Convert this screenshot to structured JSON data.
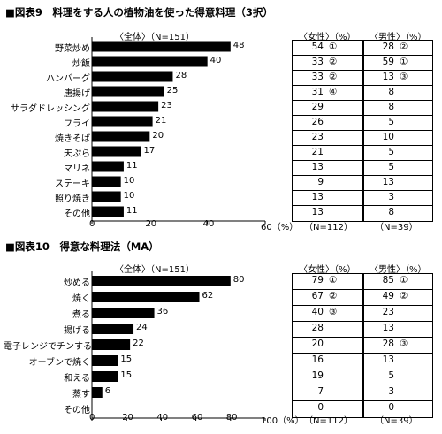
{
  "chart_data": [
    {
      "type": "bar",
      "title": "■図表9　料理をする人の植物油を使った得意料理（3択）",
      "series_header": "〈全体〉（N=151）",
      "categories": [
        "野菜炒め",
        "炒飯",
        "ハンバーグ",
        "唐揚げ",
        "サラダドレッシング",
        "フライ",
        "焼きそば",
        "天ぷら",
        "マリネ",
        "ステーキ",
        "照り焼き",
        "その他"
      ],
      "values": [
        48,
        40,
        28,
        25,
        23,
        21,
        20,
        17,
        11,
        10,
        10,
        11
      ],
      "xlim": [
        0,
        60
      ],
      "ticks": [
        "0",
        "20",
        "40",
        "60（%）"
      ],
      "tables": [
        {
          "header": "〈女性〉（%）",
          "values": [
            "54",
            "33",
            "33",
            "31",
            "29",
            "26",
            "23",
            "21",
            "13",
            "9",
            "13",
            "13"
          ],
          "ranks": [
            "①",
            "②",
            "②",
            "④",
            "",
            "",
            "",
            "",
            "",
            "",
            "",
            ""
          ],
          "footer": "（N=112）"
        },
        {
          "header": "〈男性〉（%）",
          "values": [
            "28",
            "59",
            "13",
            "8",
            "8",
            "5",
            "10",
            "5",
            "5",
            "13",
            "3",
            "8"
          ],
          "ranks": [
            "②",
            "①",
            "③",
            "",
            "",
            "",
            "",
            "",
            "",
            "",
            "",
            ""
          ],
          "footer": "（N=39）"
        }
      ]
    },
    {
      "type": "bar",
      "title": "■図表10　得意な料理法（MA）",
      "series_header": "〈全体〉（N=151）",
      "categories": [
        "炒める",
        "焼く",
        "煮る",
        "揚げる",
        "電子レンジでチンする",
        "オーブンで焼く",
        "和える",
        "蒸す",
        "その他"
      ],
      "values": [
        80,
        62,
        36,
        24,
        22,
        15,
        15,
        6,
        0
      ],
      "value_labels": [
        "80",
        "62",
        "36",
        "24",
        "22",
        "15",
        "15",
        "6",
        ""
      ],
      "xlim": [
        0,
        100
      ],
      "ticks": [
        "0",
        "20",
        "40",
        "60",
        "80",
        "100（%）"
      ],
      "tables": [
        {
          "header": "〈女性〉（%）",
          "values": [
            "79",
            "67",
            "40",
            "28",
            "20",
            "16",
            "19",
            "7",
            "0"
          ],
          "ranks": [
            "①",
            "②",
            "③",
            "",
            "",
            "",
            "",
            "",
            ""
          ],
          "footer": "（N=112）"
        },
        {
          "header": "〈男性〉（%）",
          "values": [
            "85",
            "49",
            "23",
            "13",
            "28",
            "13",
            "5",
            "3",
            "0"
          ],
          "ranks": [
            "①",
            "②",
            "",
            "",
            "③",
            "",
            "",
            "",
            ""
          ],
          "footer": "（N=39）"
        }
      ]
    }
  ]
}
